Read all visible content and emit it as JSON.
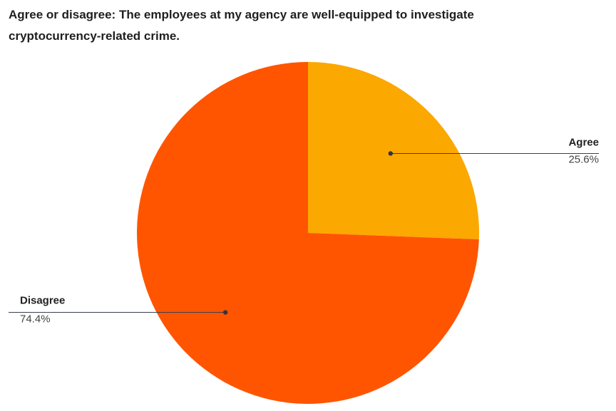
{
  "chart_data": {
    "type": "pie",
    "title": "Agree or disagree: The employees at my agency are well-equipped to investigate cryptocurrency-related crime.",
    "slices": [
      {
        "label": "Agree",
        "value": 25.6,
        "value_label": "25.6%",
        "color": "#FBA800"
      },
      {
        "label": "Disagree",
        "value": 74.4,
        "value_label": "74.4%",
        "color": "#FF5500"
      }
    ],
    "start": "12 o'clock",
    "direction": "clockwise",
    "legend": "none",
    "label_style": "leader lines to external labels"
  }
}
